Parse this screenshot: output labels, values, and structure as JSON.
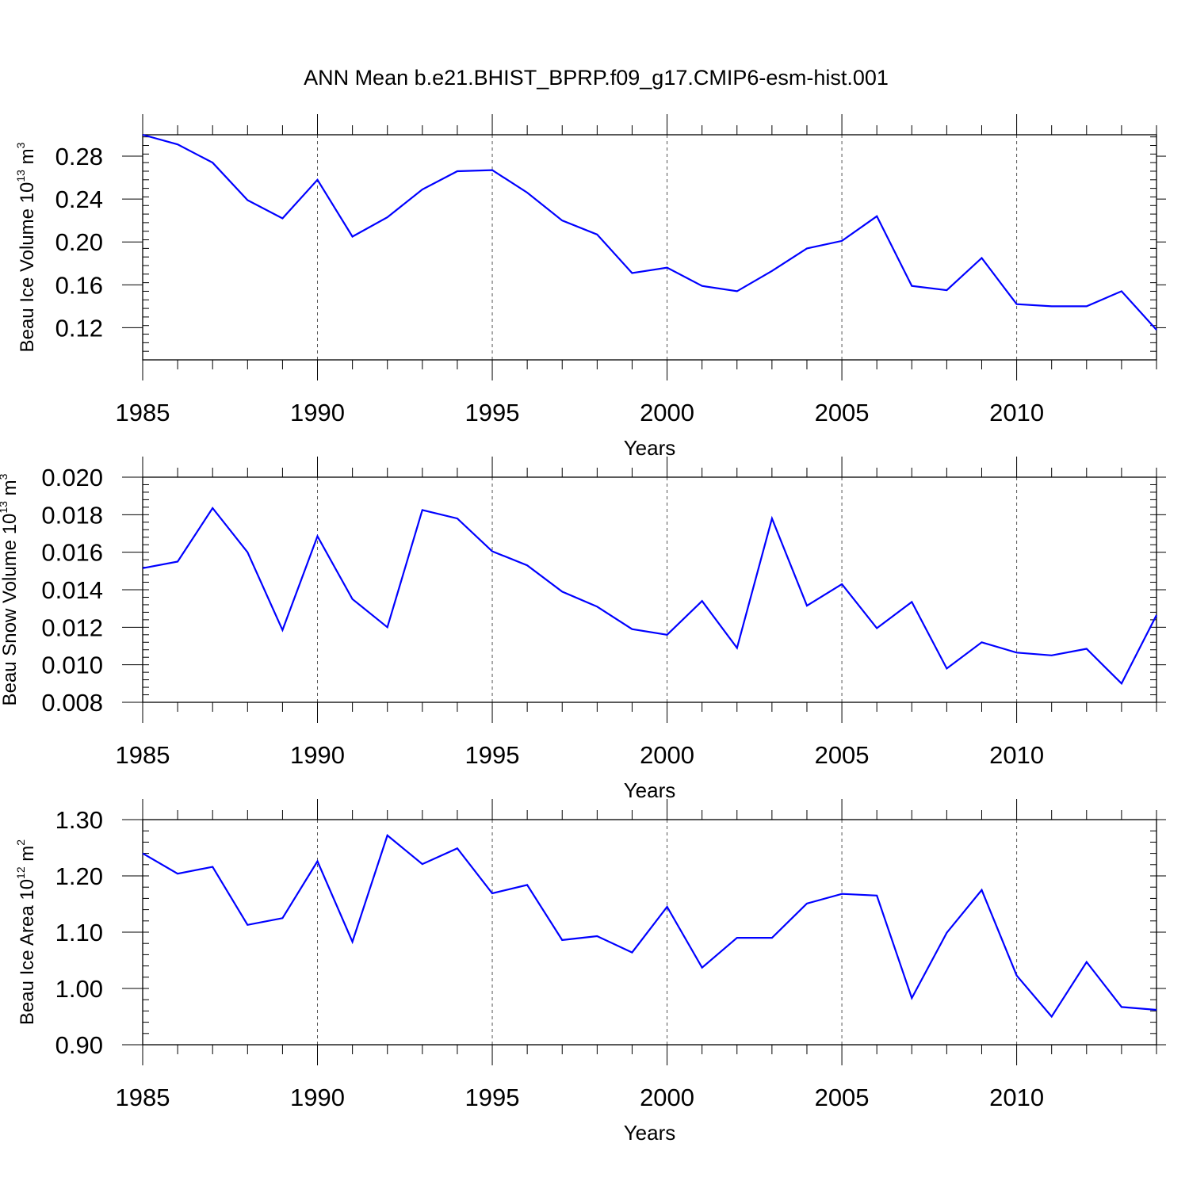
{
  "title": "ANN Mean b.e21.BHIST_BPRP.f09_g17.CMIP6-esm-hist.001",
  "chart_data": [
    {
      "type": "line",
      "ylabel": {
        "prefix": "Beau Ice Volume 10",
        "exp": "13",
        "unit": " m",
        "unit_exp": "3"
      },
      "xlabel": "Years",
      "xlim": [
        1985,
        2014
      ],
      "ylim": [
        0.09,
        0.3
      ],
      "yticks": [
        0.12,
        0.16,
        0.2,
        0.24,
        0.28
      ],
      "ytick_labels": [
        "0.12",
        "0.16",
        "0.20",
        "0.24",
        "0.28"
      ],
      "yminor_step": 0.008,
      "xticks": [
        1985,
        1990,
        1995,
        2000,
        2005,
        2010
      ],
      "xtick_labels": [
        "1985",
        "1990",
        "1995",
        "2000",
        "2005",
        "2010"
      ],
      "grid": "vertical dashed at major x ticks",
      "series": [
        {
          "name": "Beau Ice Volume",
          "color": "#0000ff",
          "x": [
            1985,
            1986,
            1987,
            1988,
            1989,
            1990,
            1991,
            1992,
            1993,
            1994,
            1995,
            1996,
            1997,
            1998,
            1999,
            2000,
            2001,
            2002,
            2003,
            2004,
            2005,
            2006,
            2007,
            2008,
            2009,
            2010,
            2011,
            2012,
            2013,
            2014
          ],
          "values": [
            0.3,
            0.291,
            0.274,
            0.239,
            0.222,
            0.258,
            0.205,
            0.223,
            0.249,
            0.266,
            0.267,
            0.246,
            0.22,
            0.207,
            0.171,
            0.176,
            0.159,
            0.154,
            0.173,
            0.194,
            0.201,
            0.224,
            0.159,
            0.155,
            0.185,
            0.142,
            0.14,
            0.14,
            0.154,
            0.118
          ]
        }
      ]
    },
    {
      "type": "line",
      "ylabel": {
        "prefix": "Beau Snow Volume 10",
        "exp": "13",
        "unit": " m",
        "unit_exp": "3"
      },
      "xlabel": "Years",
      "xlim": [
        1985,
        2014
      ],
      "ylim": [
        0.008,
        0.02
      ],
      "yticks": [
        0.008,
        0.01,
        0.012,
        0.014,
        0.016,
        0.018,
        0.02
      ],
      "ytick_labels": [
        "0.008",
        "0.010",
        "0.012",
        "0.014",
        "0.016",
        "0.018",
        "0.020"
      ],
      "yminor_step": 0.0004,
      "xticks": [
        1985,
        1990,
        1995,
        2000,
        2005,
        2010
      ],
      "xtick_labels": [
        "1985",
        "1990",
        "1995",
        "2000",
        "2005",
        "2010"
      ],
      "grid": "vertical dashed at major x ticks",
      "series": [
        {
          "name": "Beau Snow Volume",
          "color": "#0000ff",
          "x": [
            1985,
            1986,
            1987,
            1988,
            1989,
            1990,
            1991,
            1992,
            1993,
            1994,
            1995,
            1996,
            1997,
            1998,
            1999,
            2000,
            2001,
            2002,
            2003,
            2004,
            2005,
            2006,
            2007,
            2008,
            2009,
            2010,
            2011,
            2012,
            2013,
            2014
          ],
          "values": [
            0.01515,
            0.0155,
            0.01835,
            0.016,
            0.01185,
            0.01685,
            0.0135,
            0.012,
            0.01825,
            0.0178,
            0.01605,
            0.0153,
            0.0139,
            0.0131,
            0.0119,
            0.0116,
            0.0134,
            0.0109,
            0.0178,
            0.01315,
            0.0143,
            0.01195,
            0.01335,
            0.0098,
            0.0112,
            0.01065,
            0.0105,
            0.01085,
            0.009,
            0.01265
          ]
        }
      ]
    },
    {
      "type": "line",
      "ylabel": {
        "prefix": "Beau Ice Area 10",
        "exp": "12",
        "unit": " m",
        "unit_exp": "2"
      },
      "xlabel": "Years",
      "xlim": [
        1985,
        2014
      ],
      "ylim": [
        0.9,
        1.3
      ],
      "yticks": [
        0.9,
        1.0,
        1.1,
        1.2,
        1.3
      ],
      "ytick_labels": [
        "0.90",
        "1.00",
        "1.10",
        "1.20",
        "1.30"
      ],
      "yminor_step": 0.02,
      "xticks": [
        1985,
        1990,
        1995,
        2000,
        2005,
        2010
      ],
      "xtick_labels": [
        "1985",
        "1990",
        "1995",
        "2000",
        "2005",
        "2010"
      ],
      "grid": "vertical dashed at major x ticks",
      "series": [
        {
          "name": "Beau Ice Area",
          "color": "#0000ff",
          "x": [
            1985,
            1986,
            1987,
            1988,
            1989,
            1990,
            1991,
            1992,
            1993,
            1994,
            1995,
            1996,
            1997,
            1998,
            1999,
            2000,
            2001,
            2002,
            2003,
            2004,
            2005,
            2006,
            2007,
            2008,
            2009,
            2010,
            2011,
            2012,
            2013,
            2014
          ],
          "values": [
            1.24,
            1.204,
            1.216,
            1.113,
            1.125,
            1.226,
            1.083,
            1.272,
            1.221,
            1.249,
            1.169,
            1.184,
            1.086,
            1.093,
            1.064,
            1.145,
            1.037,
            1.09,
            1.09,
            1.151,
            1.168,
            1.165,
            0.983,
            1.099,
            1.175,
            1.023,
            0.95,
            1.047,
            0.967,
            0.962
          ]
        }
      ]
    }
  ]
}
